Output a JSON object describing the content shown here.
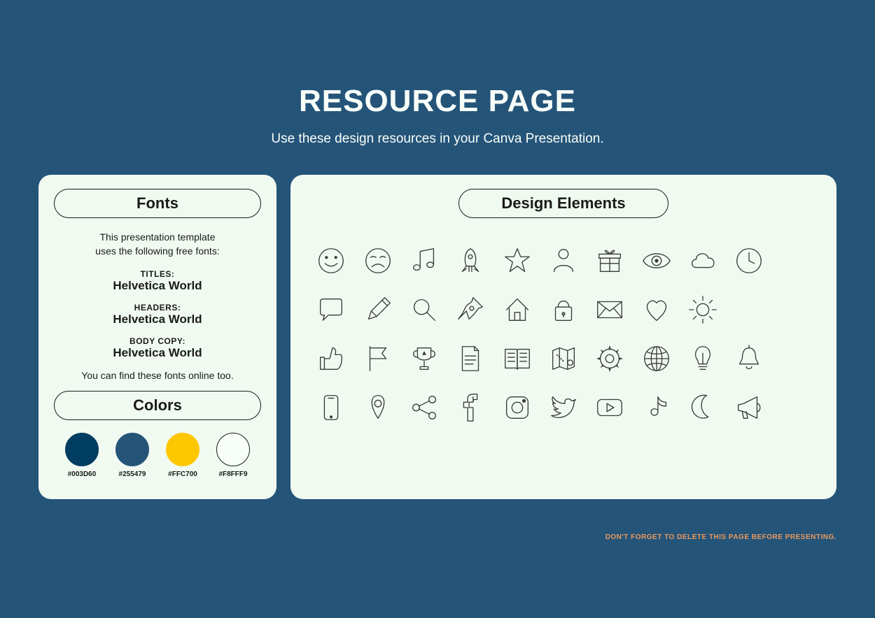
{
  "page": {
    "background_color": "#255479",
    "panel_bg": "#f1faf1",
    "text_color": "#1a1a1a",
    "header_text_color": "#f8fff9"
  },
  "header": {
    "title": "RESOURCE PAGE",
    "subtitle": "Use these design resources in your Canva Presentation."
  },
  "fonts_panel": {
    "label": "Fonts",
    "intro_line1": "This presentation template",
    "intro_line2": "uses the following free fonts:",
    "roles": [
      {
        "role": "TITLES:",
        "name": "Helvetica World"
      },
      {
        "role": "HEADERS:",
        "name": "Helvetica World"
      },
      {
        "role": "BODY COPY:",
        "name": "Helvetica World"
      }
    ],
    "outro": "You can find these fonts online too."
  },
  "colors_panel": {
    "label": "Colors",
    "swatches": [
      {
        "hex": "#003D60",
        "border": "#003D60"
      },
      {
        "hex": "#255479",
        "border": "#255479"
      },
      {
        "hex": "#FFC700",
        "border": "#FFC700"
      },
      {
        "hex": "#F8FFF9",
        "border": "#1a1a1a"
      }
    ]
  },
  "elements_panel": {
    "label": "Design Elements",
    "icon_stroke": "#3a3a3a",
    "icons": [
      "smile-icon",
      "frown-icon",
      "music-icon",
      "rocket-icon",
      "star-icon",
      "user-icon",
      "gift-icon",
      "eye-icon",
      "cloud-icon",
      "clock-icon",
      "blank-icon",
      "speech-bubble-icon",
      "pencil-icon",
      "magnifier-icon",
      "pushpin-icon",
      "house-icon",
      "lock-icon",
      "envelope-icon",
      "heart-icon",
      "sun-icon",
      "blank-icon",
      "blank-icon",
      "thumbs-up-icon",
      "flag-icon",
      "trophy-icon",
      "document-icon",
      "book-icon",
      "map-icon",
      "gear-icon",
      "globe-icon",
      "lightbulb-icon",
      "bell-icon",
      "blank-icon",
      "phone-icon",
      "location-pin-icon",
      "share-icon",
      "facebook-icon",
      "instagram-icon",
      "twitter-icon",
      "youtube-icon",
      "tiktok-icon",
      "moon-icon",
      "megaphone-icon",
      "blank-icon"
    ]
  },
  "footer": {
    "note": "DON'T FORGET TO DELETE THIS PAGE BEFORE PRESENTING.",
    "note_color": "#e89a5e"
  }
}
